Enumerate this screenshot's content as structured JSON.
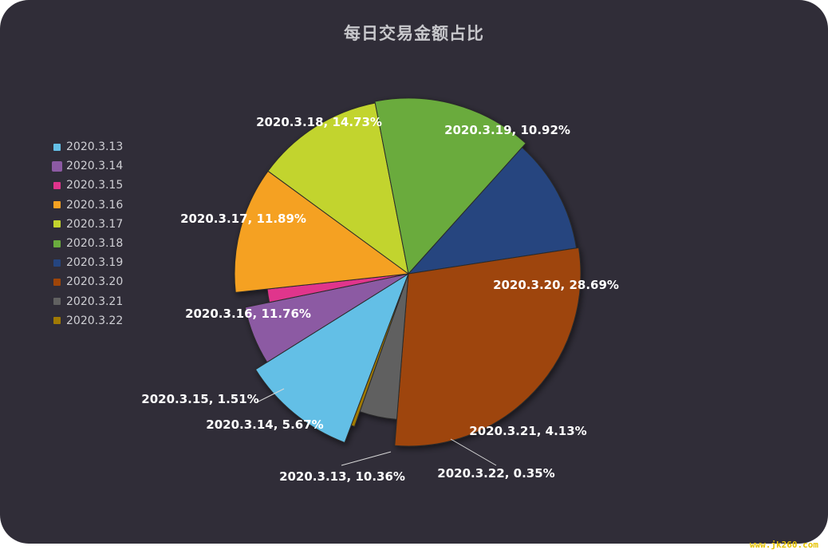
{
  "chart_data": {
    "type": "pie",
    "title": "每日交易金额占比",
    "legend_position": "left",
    "slices": [
      {
        "label": "2020.3.13",
        "value": 10.36,
        "color": "#64bfe6"
      },
      {
        "label": "2020.3.14",
        "value": 5.67,
        "color": "#8c5aa3"
      },
      {
        "label": "2020.3.15",
        "value": 1.51,
        "color": "#e0348c"
      },
      {
        "label": "2020.3.16",
        "value": 11.76,
        "color": "#f5a122"
      },
      {
        "label": "2020.3.17",
        "value": 11.89,
        "color": "#c2d42e"
      },
      {
        "label": "2020.3.18",
        "value": 14.73,
        "color": "#6aab3e"
      },
      {
        "label": "2020.3.19",
        "value": 10.92,
        "color": "#25457f"
      },
      {
        "label": "2020.3.20",
        "value": 28.69,
        "color": "#9e4509"
      },
      {
        "label": "2020.3.21",
        "value": 4.13,
        "color": "#616161"
      },
      {
        "label": "2020.3.22",
        "value": 0.35,
        "color": "#a07a05"
      }
    ]
  },
  "watermark": "www.jk260.com"
}
